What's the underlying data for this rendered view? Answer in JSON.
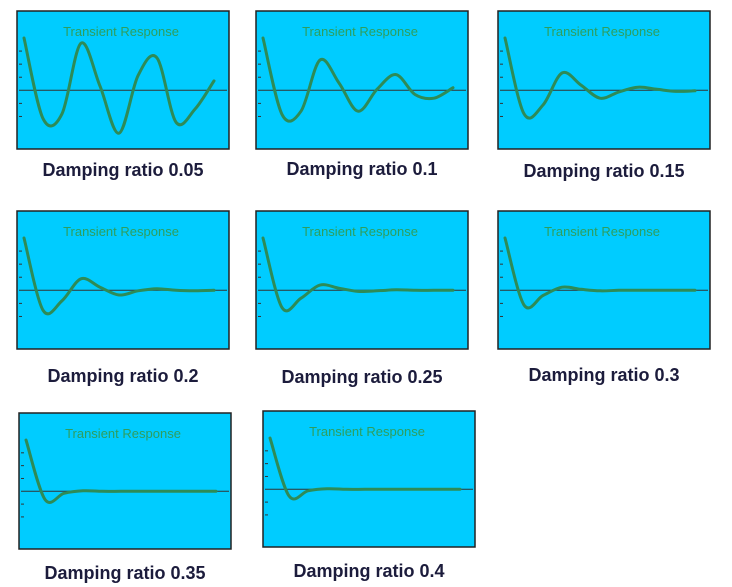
{
  "colors": {
    "background": "#00ccff",
    "frame": "#222222",
    "curve": "#2e8b57",
    "title": "#2e9e5e",
    "baseline": "#333333",
    "caption": "#1c1c3c"
  },
  "chart_data": [
    {
      "type": "line",
      "title": "Transient Response",
      "caption": "Damping ratio 0.05",
      "zeta": 0.05,
      "axes_visible": false,
      "grid": false,
      "x": [
        0,
        1,
        2,
        3,
        4,
        5,
        6,
        7,
        8,
        9,
        10
      ],
      "y": [
        1.0,
        -0.54,
        -0.45,
        0.9,
        0.08,
        -0.82,
        0.28,
        0.62,
        -0.61,
        -0.36,
        0.18
      ]
    },
    {
      "type": "line",
      "title": "Transient Response",
      "caption": "Damping ratio 0.1",
      "zeta": 0.1,
      "axes_visible": false,
      "grid": false,
      "x": [
        0,
        1,
        2,
        3,
        4,
        5,
        6,
        7,
        8,
        9,
        10
      ],
      "y": [
        1.0,
        -0.46,
        -0.4,
        0.58,
        0.14,
        -0.4,
        0.02,
        0.3,
        -0.08,
        -0.15,
        0.05
      ]
    },
    {
      "type": "line",
      "title": "Transient Response",
      "caption": "Damping ratio 0.15",
      "zeta": 0.15,
      "axes_visible": false,
      "grid": false,
      "x": [
        0,
        1,
        2,
        3,
        4,
        5,
        6,
        7,
        8,
        9,
        10
      ],
      "y": [
        1.0,
        -0.45,
        -0.28,
        0.33,
        0.1,
        -0.15,
        -0.03,
        0.06,
        0.02,
        -0.02,
        -0.01
      ]
    },
    {
      "type": "line",
      "title": "Transient Response",
      "caption": "Damping ratio 0.2",
      "zeta": 0.2,
      "axes_visible": false,
      "grid": false,
      "x": [
        0,
        1,
        2,
        3,
        4,
        5,
        6,
        7,
        8,
        9,
        10
      ],
      "y": [
        1.0,
        -0.38,
        -0.2,
        0.22,
        0.06,
        -0.09,
        -0.01,
        0.03,
        0.0,
        -0.01,
        0.0
      ]
    },
    {
      "type": "line",
      "title": "Transient Response",
      "caption": "Damping ratio 0.25",
      "zeta": 0.25,
      "axes_visible": false,
      "grid": false,
      "x": [
        0,
        1,
        2,
        3,
        4,
        5,
        6,
        7,
        8,
        9,
        10
      ],
      "y": [
        1.0,
        -0.33,
        -0.15,
        0.1,
        0.04,
        -0.02,
        -0.01,
        0.01,
        0.0,
        0.0,
        0.0
      ]
    },
    {
      "type": "line",
      "title": "Transient Response",
      "caption": "Damping ratio 0.3",
      "zeta": 0.3,
      "axes_visible": false,
      "grid": false,
      "x": [
        0,
        1,
        2,
        3,
        4,
        5,
        6,
        7,
        8,
        9,
        10
      ],
      "y": [
        1.0,
        -0.28,
        -0.1,
        0.06,
        0.02,
        -0.01,
        0.0,
        0.0,
        0.0,
        0.0,
        0.0
      ]
    },
    {
      "type": "line",
      "title": "Transient Response",
      "caption": "Damping ratio 0.35",
      "zeta": 0.35,
      "axes_visible": false,
      "grid": false,
      "x": [
        0,
        1,
        2,
        3,
        4,
        5,
        6,
        7,
        8,
        9,
        10
      ],
      "y": [
        1.0,
        -0.16,
        -0.04,
        0.01,
        0.0,
        0.0,
        0.0,
        0.0,
        0.0,
        0.0,
        0.0
      ]
    },
    {
      "type": "line",
      "title": "Transient Response",
      "caption": "Damping ratio 0.4",
      "zeta": 0.4,
      "axes_visible": false,
      "grid": false,
      "x": [
        0,
        1,
        2,
        3,
        4,
        5,
        6,
        7,
        8,
        9,
        10
      ],
      "y": [
        1.0,
        -0.13,
        -0.03,
        0.01,
        0.0,
        0.0,
        0.0,
        0.0,
        0.0,
        0.0,
        0.0
      ]
    }
  ]
}
